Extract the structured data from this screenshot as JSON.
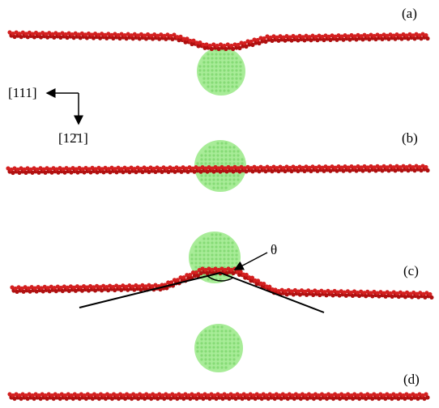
{
  "panels": [
    {
      "label": "(a)"
    },
    {
      "label": "(b)"
    },
    {
      "label": "(c)"
    },
    {
      "label": "(d)"
    }
  ],
  "axes": {
    "horizontal": "[111]",
    "vertical": "[12̄1]"
  },
  "angle_label": "θ"
}
